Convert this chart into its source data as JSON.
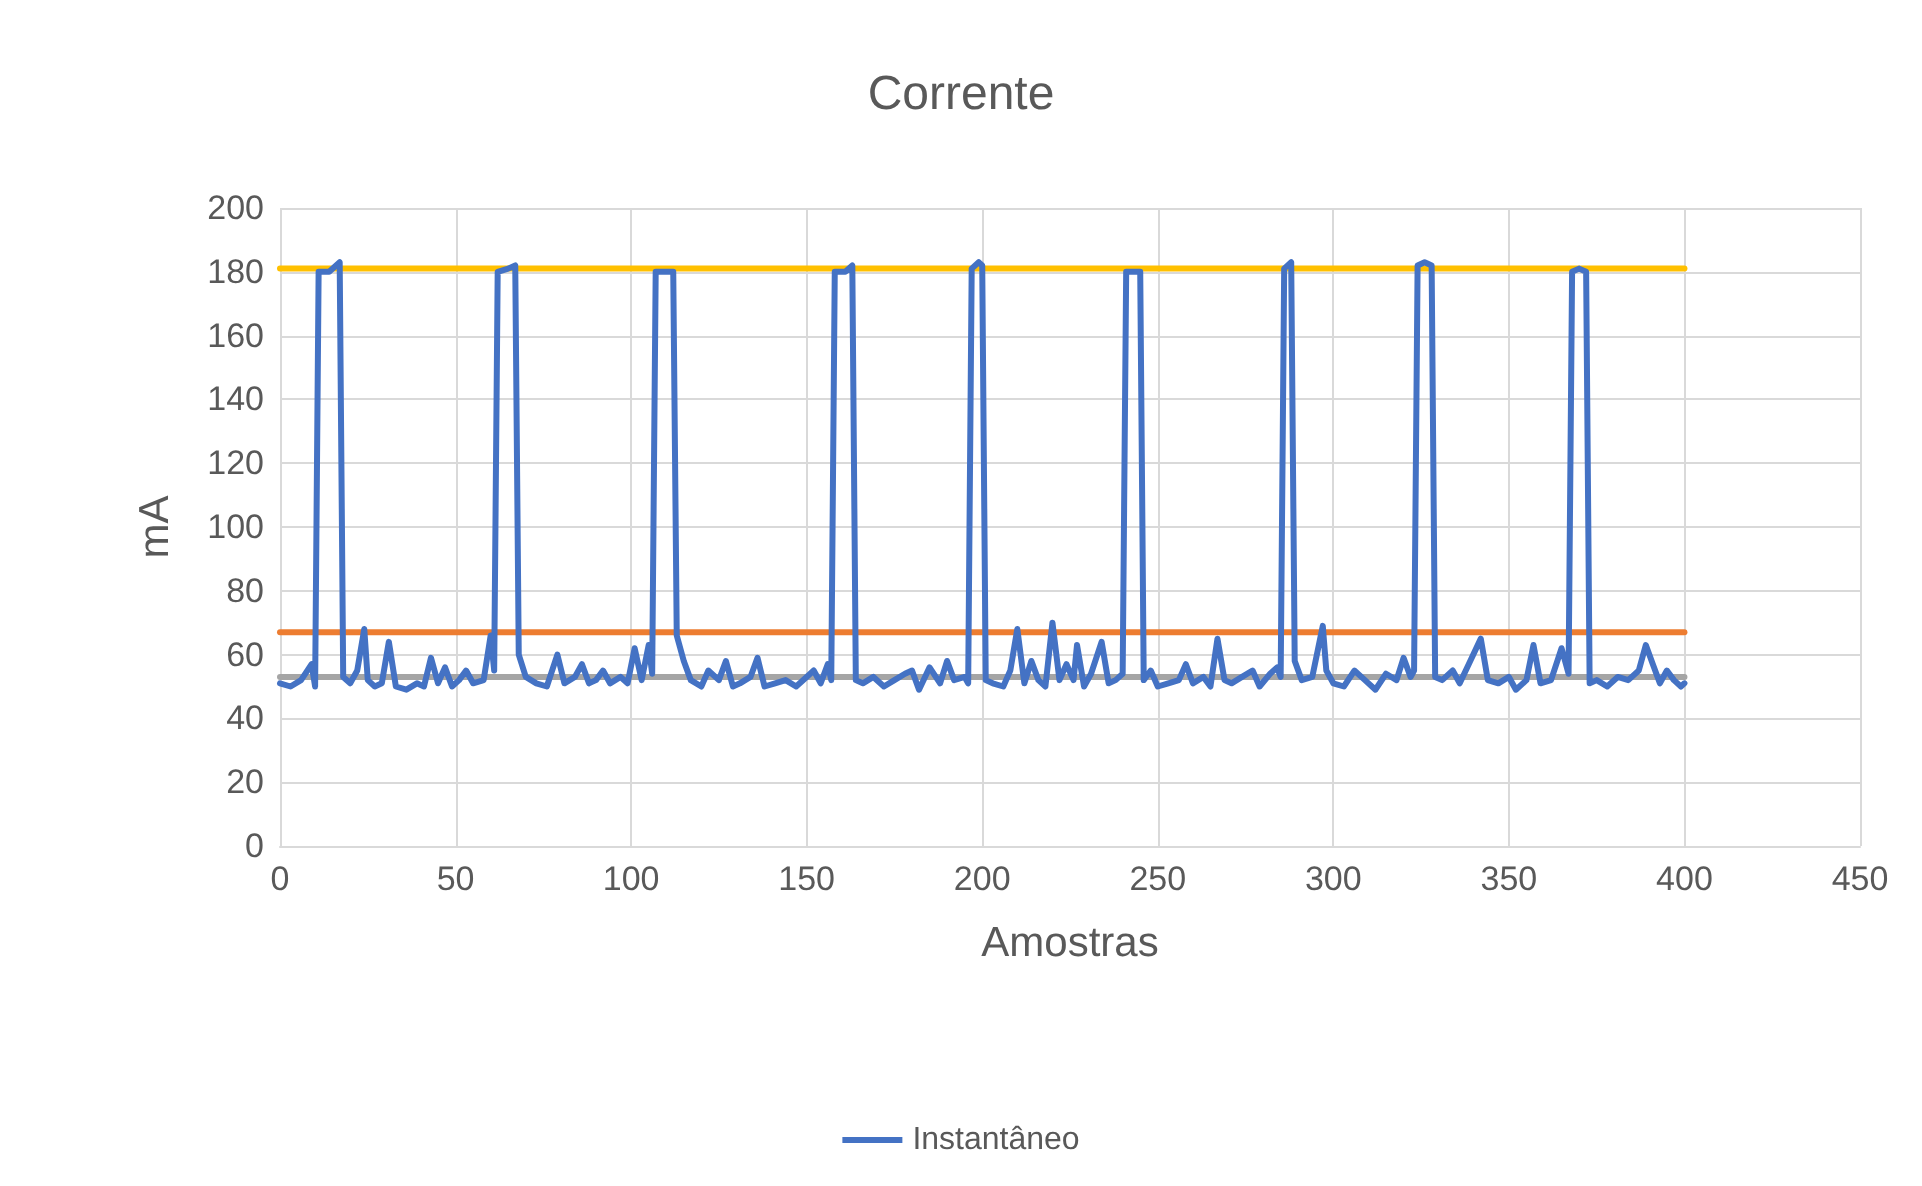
{
  "chart_data": {
    "type": "line",
    "title": "Corrente",
    "xlabel": "Amostras",
    "ylabel": "mA",
    "xlim": [
      0,
      450
    ],
    "xticks": [
      0,
      50,
      100,
      150,
      200,
      250,
      300,
      350,
      400,
      450
    ],
    "ylim": [
      0,
      200
    ],
    "yticks": [
      0,
      20,
      40,
      60,
      80,
      100,
      120,
      140,
      160,
      180,
      200
    ],
    "grid": true,
    "legend": "bottom",
    "marker": "none",
    "line_style": "solid",
    "series": [
      {
        "name": "Instantâneo",
        "color": "#4472c4",
        "x": [
          0,
          3,
          6,
          9,
          10,
          11,
          14,
          17,
          18,
          20,
          22,
          24,
          25,
          27,
          29,
          31,
          33,
          36,
          39,
          41,
          43,
          45,
          47,
          49,
          51,
          53,
          55,
          58,
          60,
          61,
          62,
          65,
          67,
          68,
          70,
          73,
          76,
          79,
          81,
          84,
          86,
          88,
          90,
          92,
          94,
          97,
          99,
          101,
          103,
          105,
          106,
          107,
          110,
          112,
          113,
          115,
          117,
          120,
          122,
          125,
          127,
          129,
          131,
          134,
          136,
          138,
          141,
          144,
          147,
          150,
          152,
          154,
          156,
          157,
          158,
          161,
          163,
          164,
          166,
          169,
          172,
          175,
          178,
          180,
          182,
          185,
          188,
          190,
          192,
          195,
          196,
          197,
          199,
          200,
          201,
          203,
          206,
          208,
          210,
          212,
          214,
          216,
          218,
          220,
          222,
          224,
          226,
          227,
          229,
          231,
          234,
          236,
          238,
          240,
          241,
          243,
          245,
          246,
          248,
          250,
          253,
          256,
          258,
          260,
          263,
          265,
          267,
          269,
          271,
          274,
          277,
          279,
          282,
          284,
          285,
          286,
          288,
          289,
          291,
          294,
          297,
          298,
          300,
          303,
          306,
          309,
          312,
          315,
          318,
          320,
          322,
          323,
          324,
          326,
          328,
          329,
          331,
          334,
          336,
          339,
          342,
          344,
          347,
          350,
          352,
          355,
          357,
          359,
          362,
          365,
          367,
          368,
          370,
          372,
          373,
          375,
          378,
          381,
          384,
          387,
          389,
          391,
          393,
          395,
          397,
          399,
          400
        ],
        "values": [
          51,
          50,
          52,
          57,
          50,
          180,
          180,
          183,
          53,
          51,
          55,
          68,
          52,
          50,
          51,
          64,
          50,
          49,
          51,
          50,
          59,
          51,
          56,
          50,
          52,
          55,
          51,
          52,
          66,
          55,
          180,
          181,
          182,
          60,
          53,
          51,
          50,
          60,
          51,
          53,
          57,
          51,
          52,
          55,
          51,
          53,
          51,
          62,
          52,
          63,
          54,
          180,
          180,
          180,
          66,
          58,
          52,
          50,
          55,
          52,
          58,
          50,
          51,
          53,
          59,
          50,
          51,
          52,
          50,
          53,
          55,
          51,
          57,
          52,
          180,
          180,
          182,
          52,
          51,
          53,
          50,
          52,
          54,
          55,
          49,
          56,
          51,
          58,
          52,
          53,
          51,
          181,
          183,
          182,
          52,
          51,
          50,
          55,
          68,
          51,
          58,
          52,
          50,
          70,
          52,
          57,
          52,
          63,
          50,
          54,
          64,
          51,
          52,
          54,
          180,
          180,
          180,
          52,
          55,
          50,
          51,
          52,
          57,
          51,
          53,
          50,
          65,
          52,
          51,
          53,
          55,
          50,
          54,
          56,
          53,
          181,
          183,
          58,
          52,
          53,
          69,
          55,
          51,
          50,
          55,
          52,
          49,
          54,
          52,
          59,
          53,
          55,
          182,
          183,
          182,
          53,
          52,
          55,
          51,
          58,
          65,
          52,
          51,
          53,
          49,
          52,
          63,
          51,
          52,
          62,
          54,
          180,
          181,
          180,
          51,
          52,
          50,
          53,
          52,
          55,
          63,
          57,
          51,
          55,
          52,
          50,
          51
        ]
      },
      {
        "color": "#ed7d31",
        "x": [
          0,
          400
        ],
        "values": [
          67,
          67
        ]
      },
      {
        "color": "#a5a5a5",
        "x": [
          0,
          400
        ],
        "values": [
          53,
          53
        ]
      },
      {
        "color": "#ffc000",
        "x": [
          0,
          400
        ],
        "values": [
          181,
          181
        ]
      }
    ]
  }
}
